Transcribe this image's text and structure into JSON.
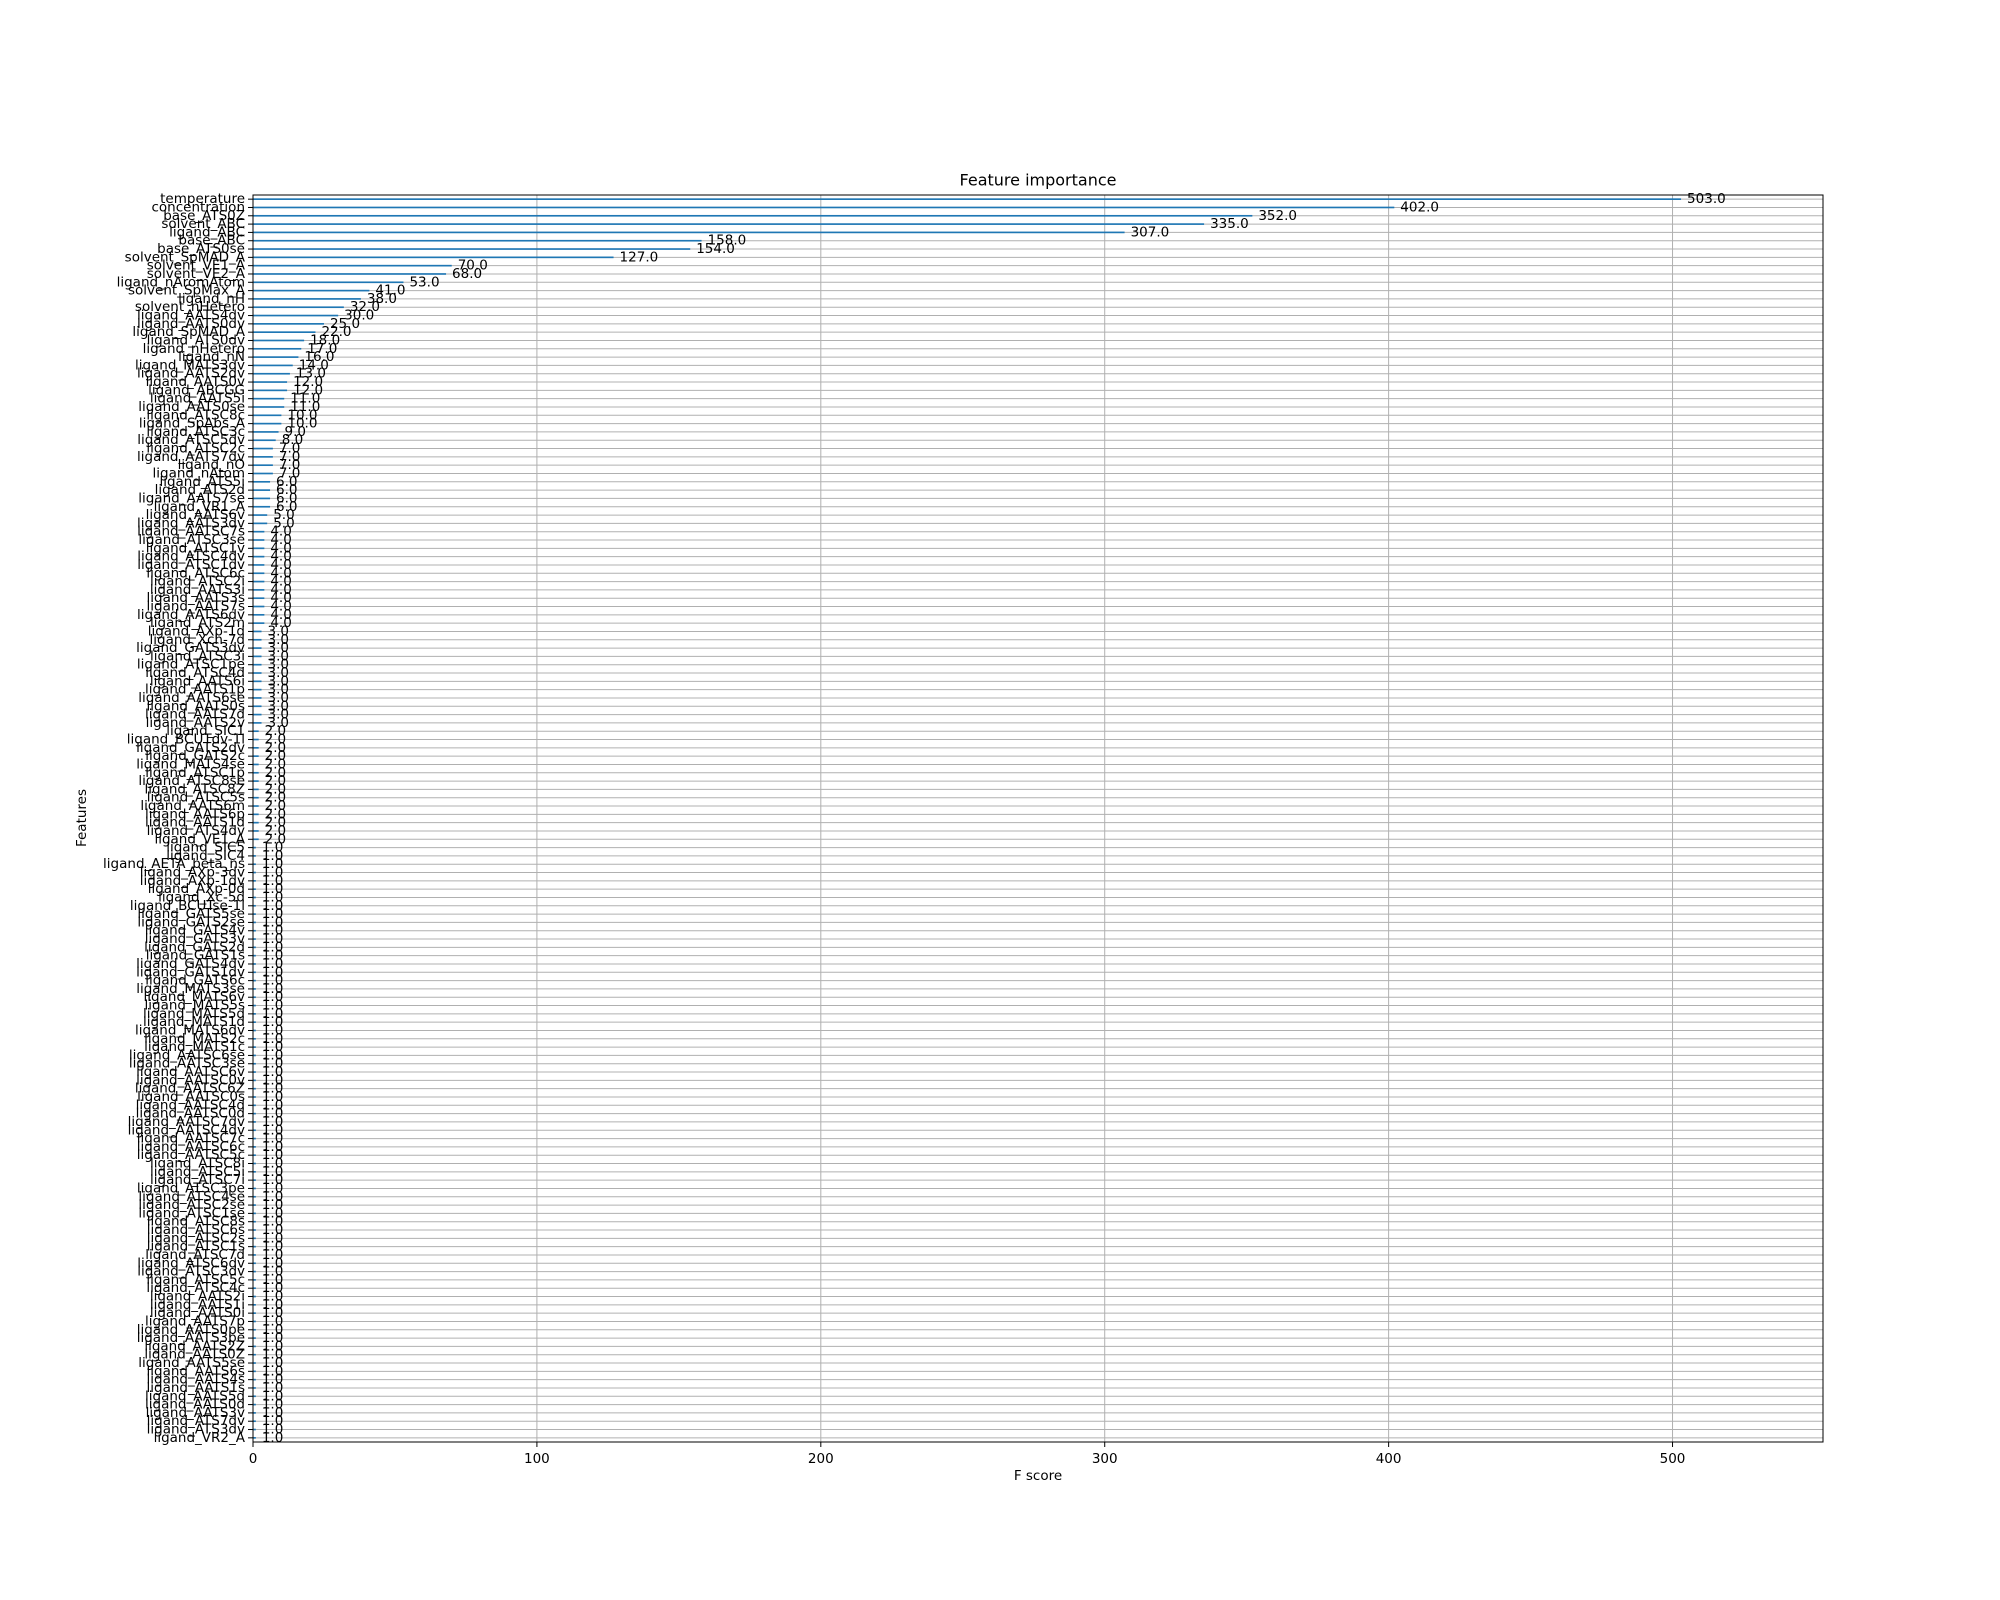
{
  "chart_data": {
    "type": "barh",
    "title": "Feature importance",
    "xlabel": "F score",
    "ylabel": "Features",
    "categories": [
      "temperature",
      "concentration",
      "base_ATS0Z",
      "solvent_ABC",
      "ligand_ABC",
      "base_ABC",
      "base_ATS0se",
      "solvent_SpMAD_A",
      "solvent_VE1_A",
      "solvent_VE2_A",
      "ligand_nAromAtom",
      "solvent_SpMax_A",
      "ligand_nH",
      "solvent_nHetero",
      "ligand_AATS4dv",
      "ligand_AATS0dv",
      "ligand_SpMAD_A",
      "ligand_ATS0dv",
      "ligand_nHetero",
      "ligand_nN",
      "ligand_MATS3dv",
      "ligand_AATS2dv",
      "ligand_AATS0v",
      "ligand_ABCGG",
      "ligand_AATS5i",
      "ligand_AATS0se",
      "ligand_ATSC8c",
      "ligand_SpAbs_A",
      "ligand_ATSC3c",
      "ligand_ATSC5dv",
      "ligand_ATSC2c",
      "ligand_AATS7dv",
      "ligand_nO",
      "ligand_nAtom",
      "ligand_ATS5i",
      "ligand_ATS2d",
      "ligand_AATS7se",
      "ligand_VR1_A",
      "ligand_AATS6v",
      "ligand_AATS3dv",
      "ligand_AATSC7s",
      "ligand_ATSC3se",
      "ligand_ATSC1v",
      "ligand_ATSC4dv",
      "ligand_ATSC1dv",
      "ligand_ATSC6c",
      "ligand_ATSC2i",
      "ligand_AATS3i",
      "ligand_AATS3s",
      "ligand_AATS7s",
      "ligand_AATS6dv",
      "ligand_ATS2m",
      "ligand_AXp-1d",
      "ligand_Xch-7d",
      "ligand_GATS3dv",
      "ligand_ATSC3i",
      "ligand_ATSC1pe",
      "ligand_ATSC4d",
      "ligand_AATS6i",
      "ligand_AATS1p",
      "ligand_AATS6se",
      "ligand_AATS0s",
      "ligand_AATS7d",
      "ligand_AATS2v",
      "ligand_SIC1",
      "ligand_BCUTdv-1l",
      "ligand_GATS2dv",
      "ligand_GATS2c",
      "ligand_MATS4se",
      "ligand_ATSC1p",
      "ligand_ATSC8se",
      "ligand_ATSC8Z",
      "ligand_ATSC5s",
      "ligand_AATS6m",
      "ligand_AATS6p",
      "ligand_AATS1d",
      "ligand_ATS4dv",
      "ligand_VE1_A",
      "ligand_SIC5",
      "ligand_SIC4",
      "ligand_AETA_beta_ns",
      "ligand_AXp-3dv",
      "ligand_AXp-1dv",
      "ligand_AXp-0d",
      "ligand_Xc-5d",
      "ligand_BCUTse-1l",
      "ligand_GATS5se",
      "ligand_GATS2se",
      "ligand_GATS4v",
      "ligand_GATS3v",
      "ligand_GATS2d",
      "ligand_GATS1s",
      "ligand_GATS4dv",
      "ligand_GATS1dv",
      "ligand_GATS6c",
      "ligand_MATS3se",
      "ligand_MATS6v",
      "ligand_MATS5s",
      "ligand_MATS5d",
      "ligand_MATS1d",
      "ligand_MATS6dv",
      "ligand_MATS2c",
      "ligand_MATS1c",
      "ligand_AATSC6se",
      "ligand_AATSC3se",
      "ligand_AATSC6v",
      "ligand_AATSC0v",
      "ligand_AATSC6Z",
      "ligand_AATSC0s",
      "ligand_AATSC4d",
      "ligand_AATSC0d",
      "ligand_AATSC7dv",
      "ligand_AATSC4dv",
      "ligand_AATSC7c",
      "ligand_AATSC6c",
      "ligand_AATSC5c",
      "ligand_ATSC8i",
      "ligand_ATSC5i",
      "ligand_ATSC7i",
      "ligand_ATSC3pe",
      "ligand_ATSC4se",
      "ligand_ATSC2se",
      "ligand_ATSC1se",
      "ligand_ATSC8s",
      "ligand_ATSC6s",
      "ligand_ATSC2s",
      "ligand_ATSC1s",
      "ligand_ATSC7d",
      "ligand_ATSC6dv",
      "ligand_ATSC3dv",
      "ligand_ATSC5c",
      "ligand_ATSC4c",
      "ligand_AATS2i",
      "ligand_AATS1i",
      "ligand_AATS0i",
      "ligand_AATS7p",
      "ligand_AATS0pe",
      "ligand_AATS3pe",
      "ligand_AATS2Z",
      "ligand_AATS0Z",
      "ligand_AATS5se",
      "ligand_AATS6s",
      "ligand_AATS4s",
      "ligand_AATS1s",
      "ligand_AATS5d",
      "ligand_AATS0d",
      "ligand_AATS3v",
      "ligand_ATS7dv",
      "ligand_ATS3dv",
      "ligand_VR2_A"
    ],
    "values": [
      503,
      402,
      352,
      335,
      307,
      158,
      154,
      127,
      70,
      68,
      53,
      41,
      38,
      32,
      30,
      25,
      22,
      18,
      17,
      16,
      14,
      13,
      12,
      12,
      11,
      11,
      10,
      10,
      9,
      8,
      7,
      7,
      7,
      7,
      6,
      6,
      6,
      6,
      5,
      5,
      4,
      4,
      4,
      4,
      4,
      4,
      4,
      4,
      4,
      4,
      4,
      4,
      3,
      3,
      3,
      3,
      3,
      3,
      3,
      3,
      3,
      3,
      3,
      3,
      2,
      2,
      2,
      2,
      2,
      2,
      2,
      2,
      2,
      2,
      2,
      2,
      2,
      2,
      1,
      1,
      1,
      1,
      1,
      1,
      1,
      1,
      1,
      1,
      1,
      1,
      1,
      1,
      1,
      1,
      1,
      1,
      1,
      1,
      1,
      1,
      1,
      1,
      1,
      1,
      1,
      1,
      1,
      1,
      1,
      1,
      1,
      1,
      1,
      1,
      1,
      1,
      1,
      1,
      1,
      1,
      1,
      1,
      1,
      1,
      1,
      1,
      1,
      1,
      1,
      1,
      1,
      1,
      1,
      1,
      1,
      1,
      1,
      1,
      1,
      1,
      1,
      1,
      1,
      1,
      1,
      1,
      1,
      1,
      1,
      1
    ],
    "value_labels": [
      "503.0",
      "402.0",
      "352.0",
      "335.0",
      "307.0",
      "158.0",
      "154.0",
      "127.0",
      "70.0",
      "68.0",
      "53.0",
      "41.0",
      "38.0",
      "32.0",
      "30.0",
      "25.0",
      "22.0",
      "18.0",
      "17.0",
      "16.0",
      "14.0",
      "13.0",
      "12.0",
      "12.0",
      "11.0",
      "11.0",
      "10.0",
      "10.0",
      "9.0",
      "8.0",
      "7.0",
      "7.0",
      "7.0",
      "7.0",
      "6.0",
      "6.0",
      "6.0",
      "6.0",
      "5.0",
      "5.0",
      "4.0",
      "4.0",
      "4.0",
      "4.0",
      "4.0",
      "4.0",
      "4.0",
      "4.0",
      "4.0",
      "4.0",
      "4.0",
      "4.0",
      "3.0",
      "3.0",
      "3.0",
      "3.0",
      "3.0",
      "3.0",
      "3.0",
      "3.0",
      "3.0",
      "3.0",
      "3.0",
      "3.0",
      "2.0",
      "2.0",
      "2.0",
      "2.0",
      "2.0",
      "2.0",
      "2.0",
      "2.0",
      "2.0",
      "2.0",
      "2.0",
      "2.0",
      "2.0",
      "2.0",
      "1.0",
      "1.0",
      "1.0",
      "1.0",
      "1.0",
      "1.0",
      "1.0",
      "1.0",
      "1.0",
      "1.0",
      "1.0",
      "1.0",
      "1.0",
      "1.0",
      "1.0",
      "1.0",
      "1.0",
      "1.0",
      "1.0",
      "1.0",
      "1.0",
      "1.0",
      "1.0",
      "1.0",
      "1.0",
      "1.0",
      "1.0",
      "1.0",
      "1.0",
      "1.0",
      "1.0",
      "1.0",
      "1.0",
      "1.0",
      "1.0",
      "1.0",
      "1.0",
      "1.0",
      "1.0",
      "1.0",
      "1.0",
      "1.0",
      "1.0",
      "1.0",
      "1.0",
      "1.0",
      "1.0",
      "1.0",
      "1.0",
      "1.0",
      "1.0",
      "1.0",
      "1.0",
      "1.0",
      "1.0",
      "1.0",
      "1.0",
      "1.0",
      "1.0",
      "1.0",
      "1.0",
      "1.0",
      "1.0",
      "1.0",
      "1.0",
      "1.0",
      "1.0",
      "1.0",
      "1.0",
      "1.0",
      "1.0",
      "1.0"
    ],
    "color": "#1f77b4",
    "xlim": [
      0,
      553
    ],
    "xticks": [
      0,
      100,
      200,
      300,
      400,
      500
    ],
    "grid": true
  }
}
